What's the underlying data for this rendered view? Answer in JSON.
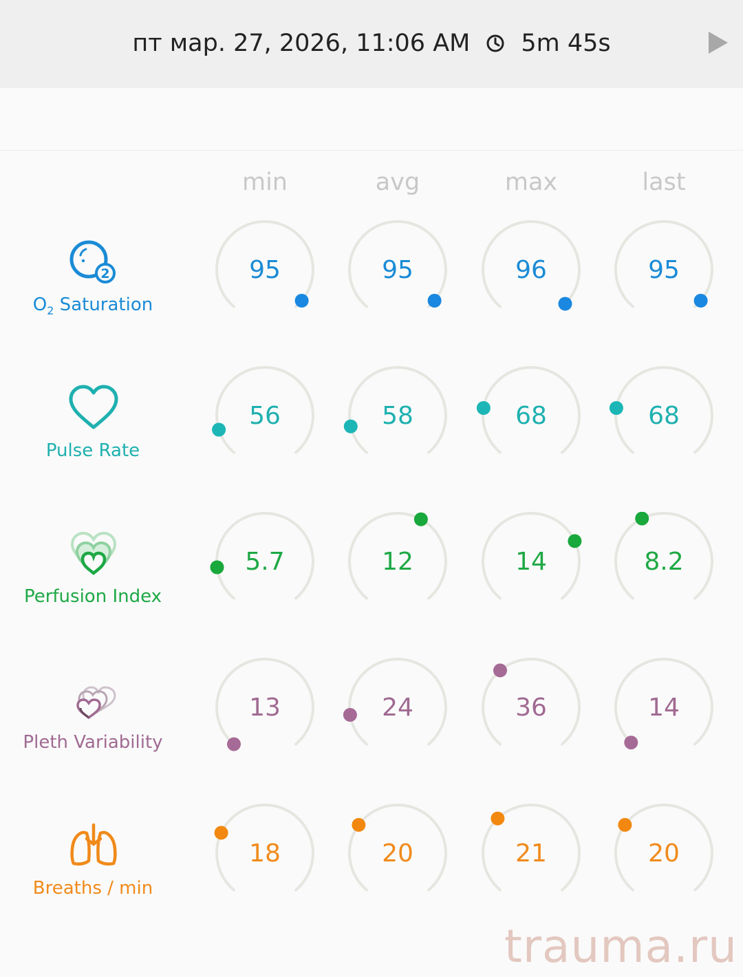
{
  "header": {
    "datetime": "пт мар. 27, 2026, 11:06 AM",
    "duration": "5m 45s",
    "clock_icon": "clock-icon",
    "play_icon": "play-icon"
  },
  "columns": [
    "min",
    "avg",
    "max",
    "last"
  ],
  "rows": [
    {
      "key": "o2",
      "label_main": "O",
      "label_sub": "2",
      "label_rest": " Saturation",
      "icon": "o2-icon",
      "color": "#1a8bd6",
      "dot_color": "#1a88e0",
      "values": [
        "95",
        "95",
        "96",
        "95"
      ],
      "dot_angles": [
        130,
        130,
        135,
        130
      ]
    },
    {
      "key": "pulse",
      "label_main": "Pulse Rate",
      "label_sub": "",
      "label_rest": "",
      "icon": "heart-icon",
      "color": "#1fb0b0",
      "dot_color": "#1cb6b6",
      "values": [
        "56",
        "58",
        "68",
        "68"
      ],
      "dot_angles": [
        -107,
        -103,
        -81,
        -81
      ]
    },
    {
      "key": "perfusion",
      "label_main": "Perfusion Index",
      "label_sub": "",
      "label_rest": "",
      "icon": "perfusion-icon",
      "color": "#1ea845",
      "dot_color": "#19a83c",
      "values": [
        "5.7",
        "12",
        "14",
        "8.2"
      ],
      "dot_angles": [
        -97,
        29,
        65,
        -27
      ]
    },
    {
      "key": "pleth",
      "label_main": "Pleth Variability",
      "label_sub": "",
      "label_rest": "",
      "icon": "pleth-icon",
      "color": "#a06a92",
      "dot_color": "#a66a96",
      "values": [
        "13",
        "24",
        "36",
        "14"
      ],
      "dot_angles": [
        -140,
        -99,
        -40,
        -137
      ]
    },
    {
      "key": "breaths",
      "label_main": "Breaths / min",
      "label_sub": "",
      "label_rest": "",
      "icon": "lungs-icon",
      "color": "#f08a1a",
      "dot_color": "#f2880f",
      "values": [
        "18",
        "20",
        "21",
        "20"
      ],
      "dot_angles": [
        -65,
        -54,
        -44,
        -54
      ]
    }
  ],
  "watermark": "trauma.ru"
}
